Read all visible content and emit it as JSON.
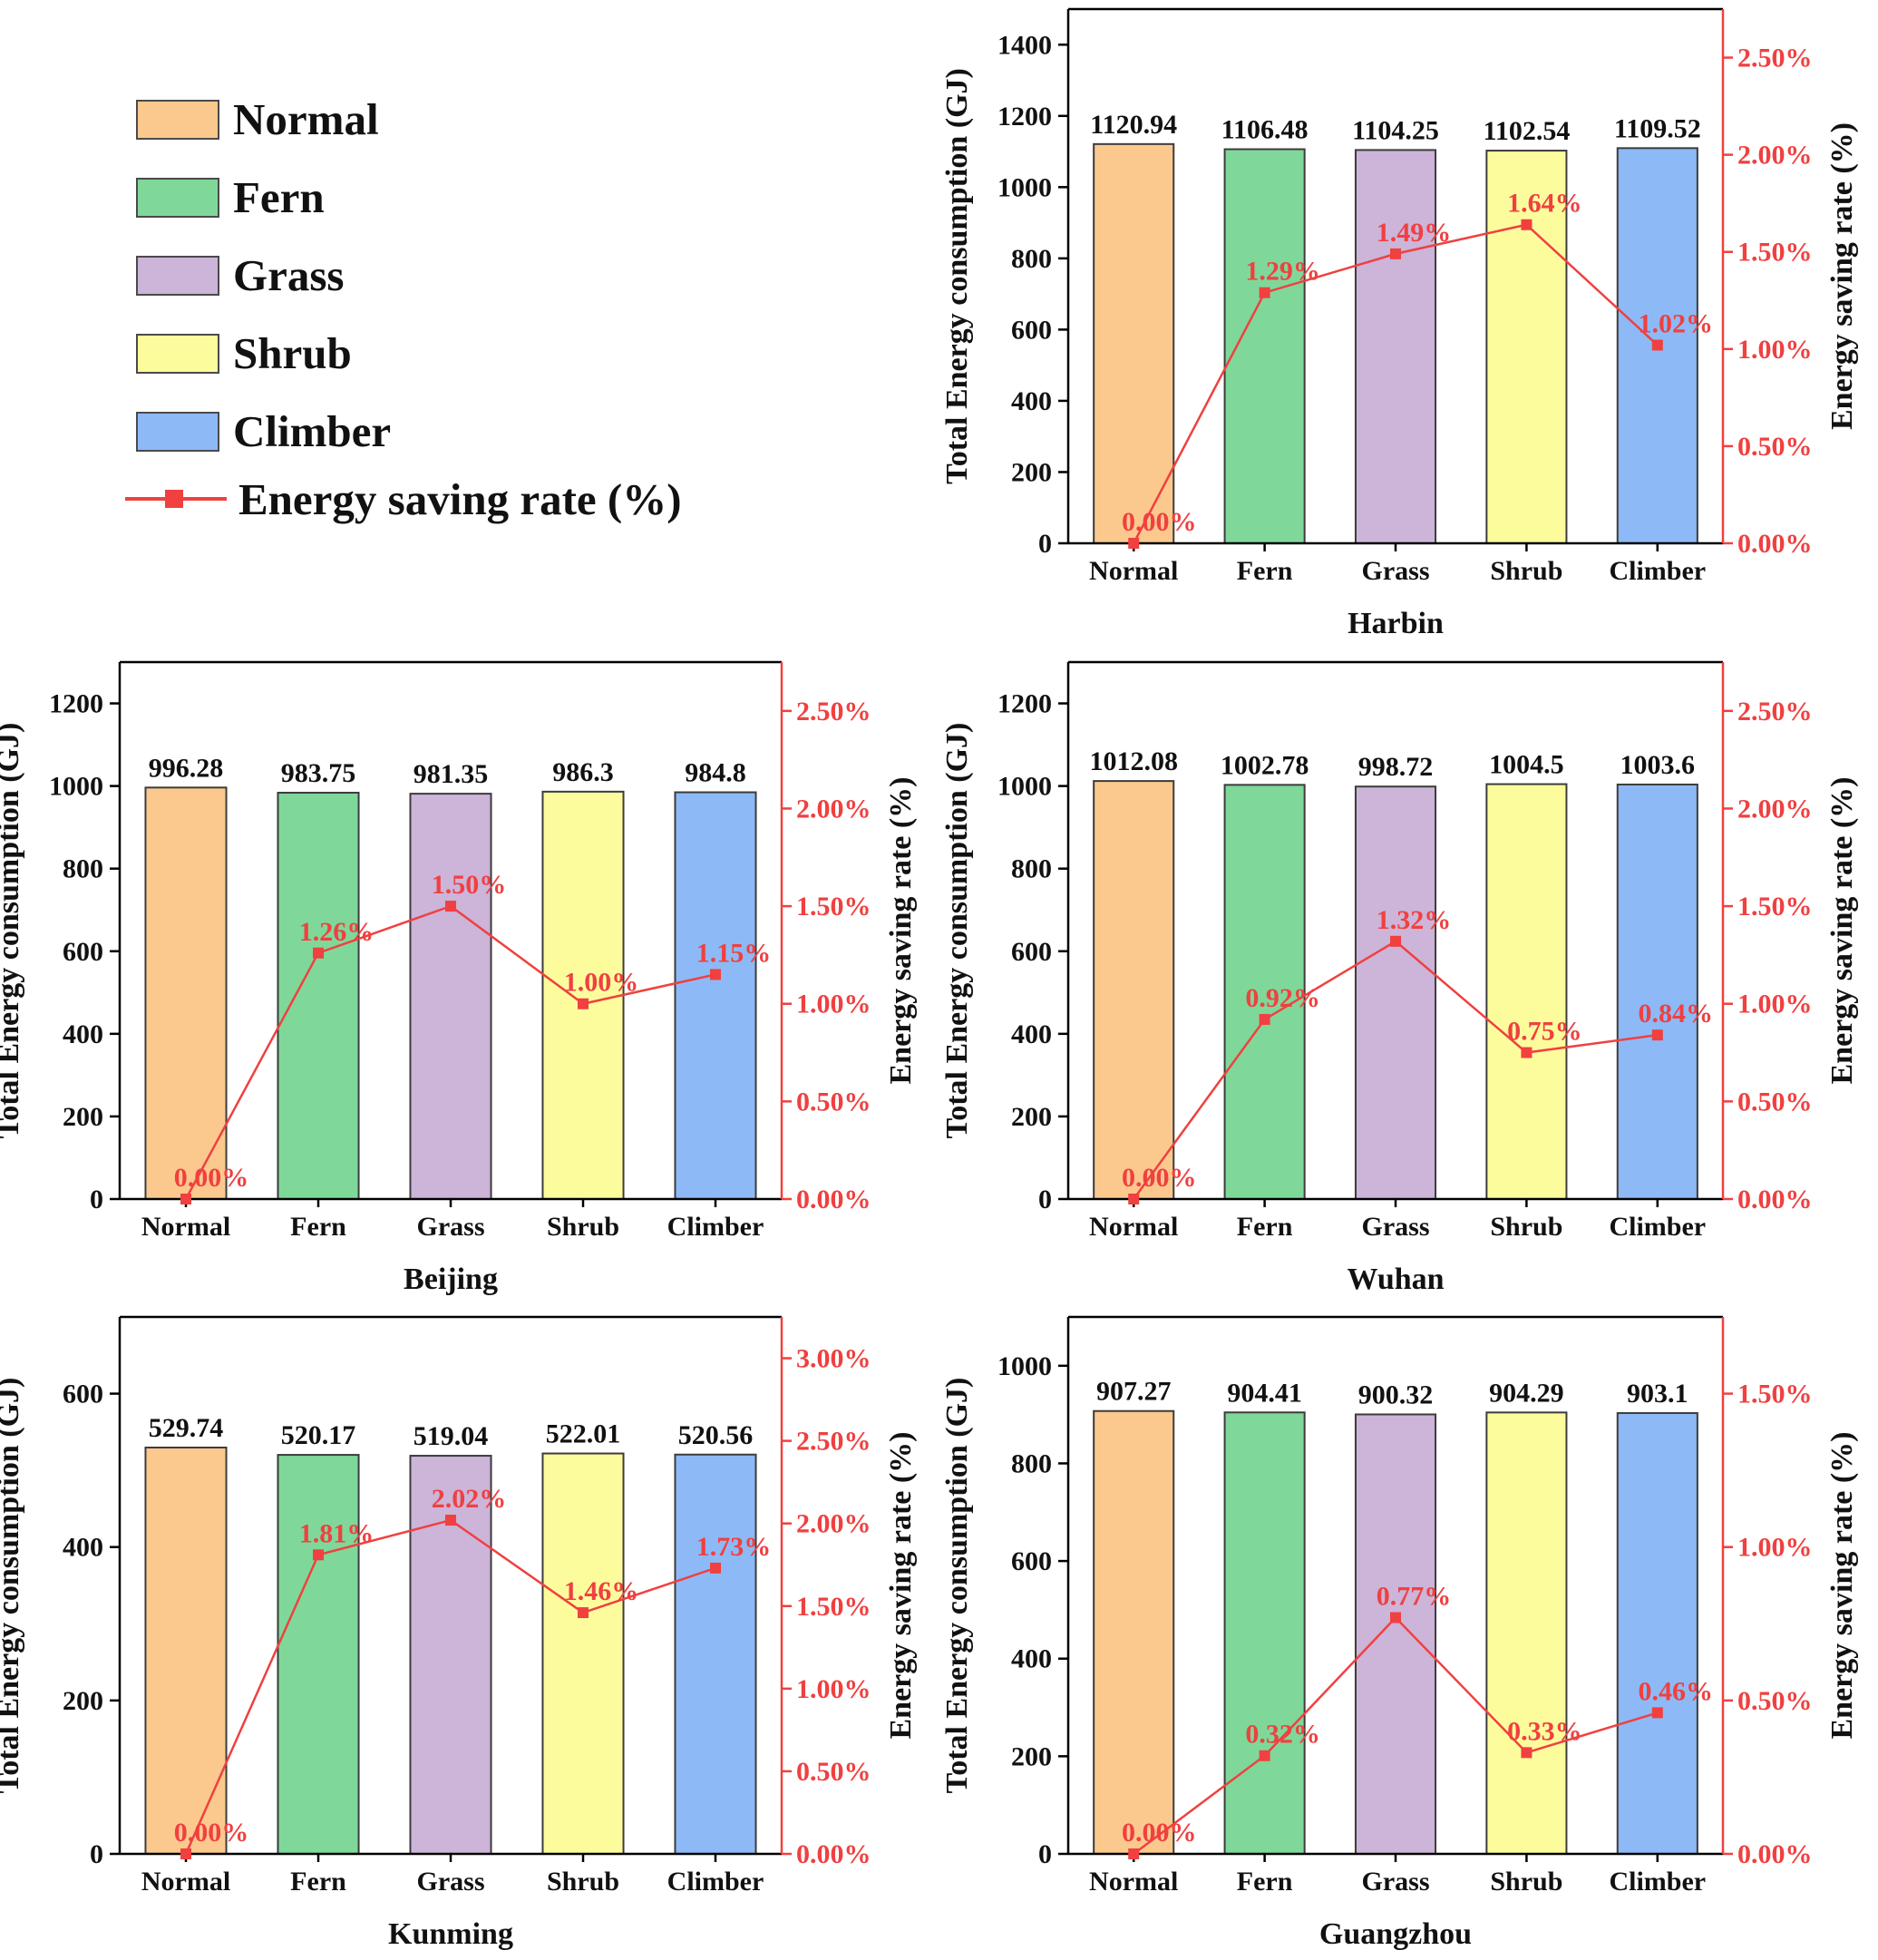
{
  "legend": {
    "items": [
      {
        "label": "Normal",
        "color": "#fbc98e"
      },
      {
        "label": "Fern",
        "color": "#7fd89a"
      },
      {
        "label": "Grass",
        "color": "#cdb4d9"
      },
      {
        "label": "Shrub",
        "color": "#fdfc9d"
      },
      {
        "label": "Climber",
        "color": "#8dbaf6"
      }
    ],
    "line_label": "Energy saving rate (%)",
    "line_color": "#f04040"
  },
  "chart_data": [
    {
      "type": "bar",
      "title": "Harbin",
      "categories": [
        "Normal",
        "Fern",
        "Grass",
        "Shrub",
        "Climber"
      ],
      "ylabel": "Total Energy consumption (GJ)",
      "y2label": "Energy saving rate (%)",
      "ylim": [
        0,
        1500
      ],
      "yticks": [
        0,
        200,
        400,
        600,
        800,
        1000,
        1200,
        1400
      ],
      "y2lim": [
        0,
        2.75
      ],
      "y2ticks": [
        0,
        0.5,
        1.0,
        1.5,
        2.0,
        2.5
      ],
      "values": [
        1120.94,
        1106.48,
        1104.25,
        1102.54,
        1109.52
      ],
      "value_labels": [
        "1120.94",
        "1106.48",
        "1104.25",
        "1102.54",
        "1109.52"
      ],
      "rates": [
        0.0,
        1.29,
        1.49,
        1.64,
        1.02
      ],
      "rate_labels": [
        "0.00%",
        "1.29%",
        "1.49%",
        "1.64%",
        "1.02%"
      ]
    },
    {
      "type": "bar",
      "title": "Beijing",
      "categories": [
        "Normal",
        "Fern",
        "Grass",
        "Shrub",
        "Climber"
      ],
      "ylabel": "Total Energy consumption (GJ)",
      "y2label": "Energy saving rate (%)",
      "ylim": [
        0,
        1300
      ],
      "yticks": [
        0,
        200,
        400,
        600,
        800,
        1000,
        1200
      ],
      "y2lim": [
        0,
        2.75
      ],
      "y2ticks": [
        0,
        0.5,
        1.0,
        1.5,
        2.0,
        2.5
      ],
      "values": [
        996.28,
        983.75,
        981.35,
        986.3,
        984.8
      ],
      "value_labels": [
        "996.28",
        "983.75",
        "981.35",
        "986.3",
        "984.8"
      ],
      "rates": [
        0.0,
        1.26,
        1.5,
        1.0,
        1.15
      ],
      "rate_labels": [
        "0.00%",
        "1.26%",
        "1.50%",
        "1.00%",
        "1.15%"
      ]
    },
    {
      "type": "bar",
      "title": "Wuhan",
      "categories": [
        "Normal",
        "Fern",
        "Grass",
        "Shrub",
        "Climber"
      ],
      "ylabel": "Total Energy consumption (GJ)",
      "y2label": "Energy saving rate (%)",
      "ylim": [
        0,
        1300
      ],
      "yticks": [
        0,
        200,
        400,
        600,
        800,
        1000,
        1200
      ],
      "y2lim": [
        0,
        2.75
      ],
      "y2ticks": [
        0,
        0.5,
        1.0,
        1.5,
        2.0,
        2.5
      ],
      "values": [
        1012.08,
        1002.78,
        998.72,
        1004.5,
        1003.6
      ],
      "value_labels": [
        "1012.08",
        "1002.78",
        "998.72",
        "1004.5",
        "1003.6"
      ],
      "rates": [
        0.0,
        0.92,
        1.32,
        0.75,
        0.84
      ],
      "rate_labels": [
        "0.00%",
        "0.92%",
        "1.32%",
        "0.75%",
        "0.84%"
      ]
    },
    {
      "type": "bar",
      "title": "Kunming",
      "categories": [
        "Normal",
        "Fern",
        "Grass",
        "Shrub",
        "Climber"
      ],
      "ylabel": "Total Energy consumption (GJ)",
      "y2label": "Energy saving rate (%)",
      "ylim": [
        0,
        700
      ],
      "yticks": [
        0,
        200,
        400,
        600
      ],
      "y2lim": [
        0,
        3.25
      ],
      "y2ticks": [
        0,
        0.5,
        1.0,
        1.5,
        2.0,
        2.5,
        3.0
      ],
      "values": [
        529.74,
        520.17,
        519.04,
        522.01,
        520.56
      ],
      "value_labels": [
        "529.74",
        "520.17",
        "519.04",
        "522.01",
        "520.56"
      ],
      "rates": [
        0.0,
        1.81,
        2.02,
        1.46,
        1.73
      ],
      "rate_labels": [
        "0.00%",
        "1.81%",
        "2.02%",
        "1.46%",
        "1.73%"
      ]
    },
    {
      "type": "bar",
      "title": "Guangzhou",
      "categories": [
        "Normal",
        "Fern",
        "Grass",
        "Shrub",
        "Climber"
      ],
      "ylabel": "Total Energy consumption (GJ)",
      "y2label": "Energy saving rate (%)",
      "ylim": [
        0,
        1100
      ],
      "yticks": [
        0,
        200,
        400,
        600,
        800,
        1000
      ],
      "y2lim": [
        0,
        1.75
      ],
      "y2ticks": [
        0,
        0.5,
        1.0,
        1.5
      ],
      "values": [
        907.27,
        904.41,
        900.32,
        904.29,
        903.1
      ],
      "value_labels": [
        "907.27",
        "904.41",
        "900.32",
        "904.29",
        "903.1"
      ],
      "rates": [
        0.0,
        0.32,
        0.77,
        0.33,
        0.46
      ],
      "rate_labels": [
        "0.00%",
        "0.32%",
        "0.77%",
        "0.33%",
        "0.46%"
      ]
    }
  ]
}
